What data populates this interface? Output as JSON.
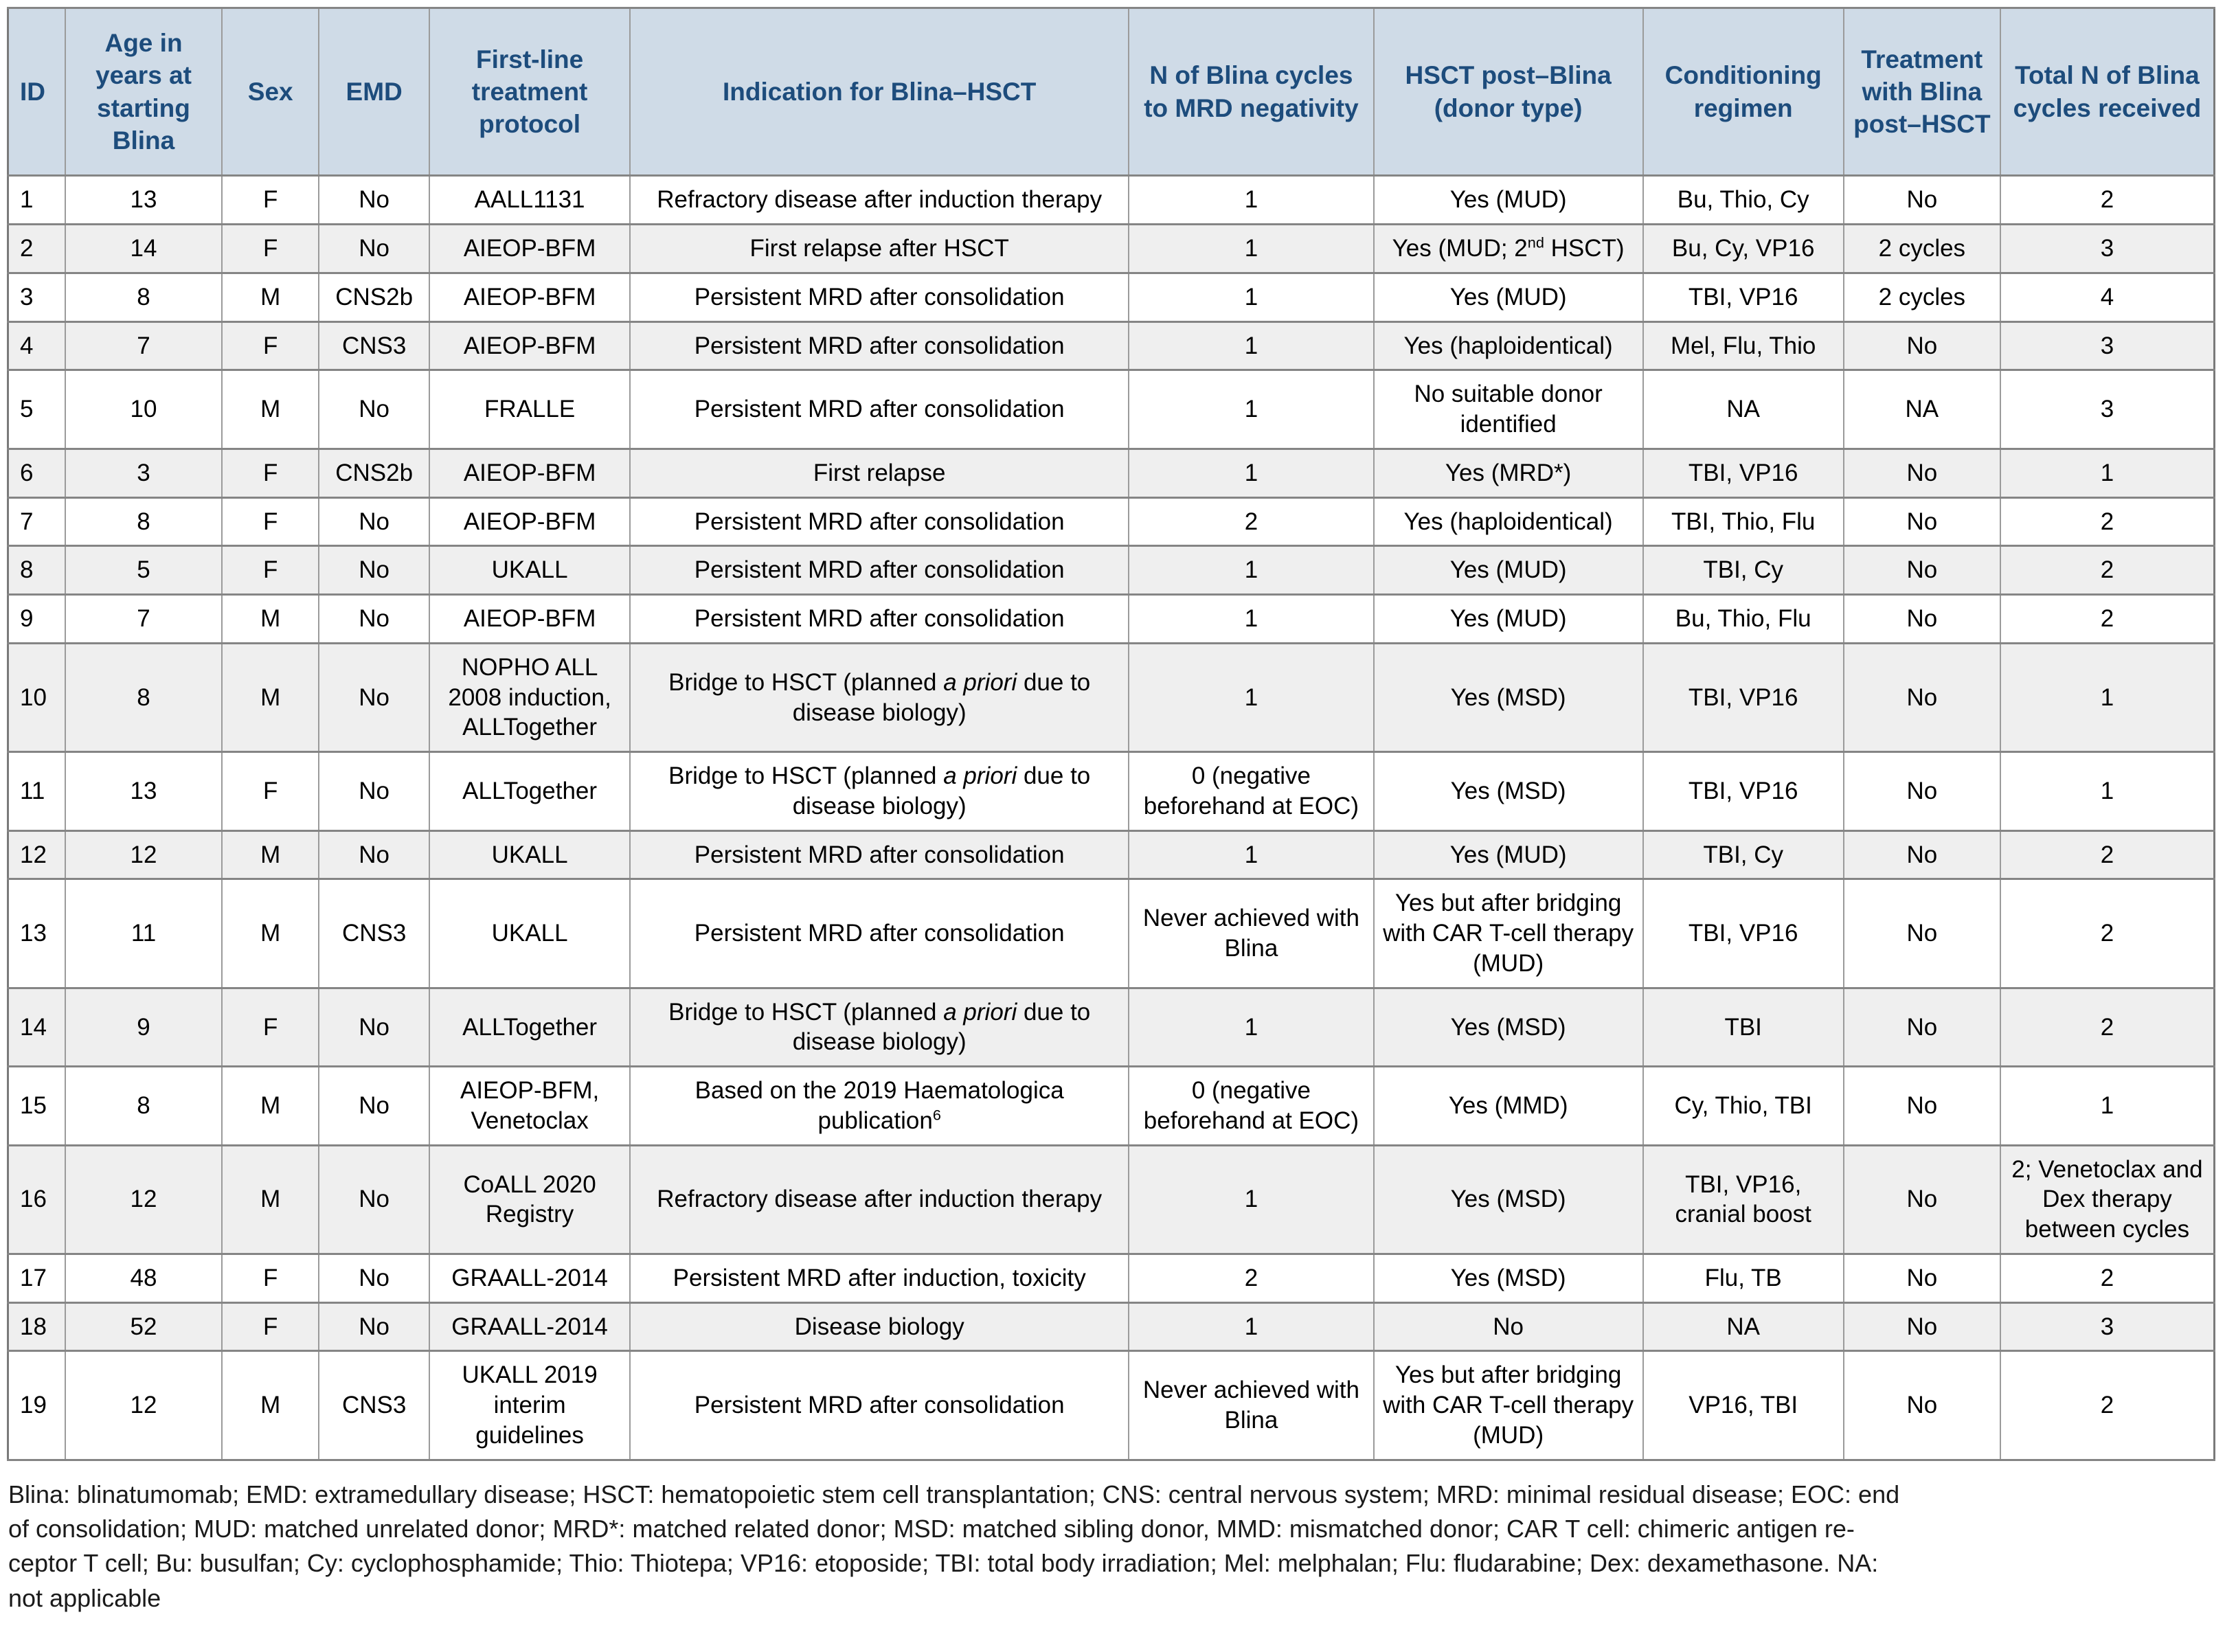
{
  "colors": {
    "header_bg": "#cfdbe7",
    "header_text": "#1d4c7c",
    "row_alt_bg": "#efefef",
    "border": "#8c8c8c"
  },
  "table": {
    "headers": [
      "ID",
      "Age in years at starting Blina",
      "Sex",
      "EMD",
      "First-line treatment protocol",
      "Indication for Blina–HSCT",
      "N of Blina cycles to MRD negativity",
      "HSCT post–Blina (donor type)",
      "Conditioning regimen",
      "Treatment with Blina post–HSCT",
      "Total N of Blina cycles received"
    ],
    "rows": [
      {
        "cells": [
          "1",
          "13",
          "F",
          "No",
          "AALL1131",
          "Refractory disease after induction therapy",
          "1",
          "Yes (MUD)",
          "Bu, Thio, Cy",
          "No",
          "2"
        ]
      },
      {
        "cells": [
          "2",
          "14",
          "F",
          "No",
          "AIEOP-BFM",
          "First relapse after HSCT",
          "1",
          "Yes (MUD; 2^nd^ HSCT)",
          "Bu, Cy, VP16",
          "2 cycles",
          "3"
        ]
      },
      {
        "cells": [
          "3",
          "8",
          "M",
          "CNS2b",
          "AIEOP-BFM",
          "Persistent MRD after consolidation",
          "1",
          "Yes (MUD)",
          "TBI, VP16",
          "2 cycles",
          "4"
        ]
      },
      {
        "cells": [
          "4",
          "7",
          "F",
          "CNS3",
          "AIEOP-BFM",
          "Persistent MRD after consolidation",
          "1",
          "Yes (haploidentical)",
          "Mel, Flu, Thio",
          "No",
          "3"
        ]
      },
      {
        "cells": [
          "5",
          "10",
          "M",
          "No",
          "FRALLE",
          "Persistent MRD after consolidation",
          "1",
          "No suitable donor identified",
          "NA",
          "NA",
          "3"
        ]
      },
      {
        "cells": [
          "6",
          "3",
          "F",
          "CNS2b",
          "AIEOP-BFM",
          "First relapse",
          "1",
          "Yes (MRD*)",
          "TBI, VP16",
          "No",
          "1"
        ]
      },
      {
        "cells": [
          "7",
          "8",
          "F",
          "No",
          "AIEOP-BFM",
          "Persistent MRD after consolidation",
          "2",
          "Yes (haploidentical)",
          "TBI, Thio, Flu",
          "No",
          "2"
        ]
      },
      {
        "cells": [
          "8",
          "5",
          "F",
          "No",
          "UKALL",
          "Persistent MRD after consolidation",
          "1",
          "Yes (MUD)",
          "TBI, Cy",
          "No",
          "2"
        ]
      },
      {
        "cells": [
          "9",
          "7",
          "M",
          "No",
          "AIEOP-BFM",
          "Persistent MRD after consolidation",
          "1",
          "Yes (MUD)",
          "Bu, Thio, Flu",
          "No",
          "2"
        ]
      },
      {
        "cells": [
          "10",
          "8",
          "M",
          "No",
          "NOPHO ALL 2008 induction, ALLTogether",
          "Bridge to HSCT (planned *a priori* due to disease biology)",
          "1",
          "Yes (MSD)",
          "TBI, VP16",
          "No",
          "1"
        ]
      },
      {
        "cells": [
          "11",
          "13",
          "F",
          "No",
          "ALLTogether",
          "Bridge to HSCT (planned *a priori* due to disease biology)",
          "0 (negative beforehand at EOC)",
          "Yes (MSD)",
          "TBI, VP16",
          "No",
          "1"
        ]
      },
      {
        "cells": [
          "12",
          "12",
          "M",
          "No",
          "UKALL",
          "Persistent MRD after consolidation",
          "1",
          "Yes (MUD)",
          "TBI, Cy",
          "No",
          "2"
        ]
      },
      {
        "cells": [
          "13",
          "11",
          "M",
          "CNS3",
          "UKALL",
          "Persistent MRD after consolidation",
          "Never achieved with Blina",
          "Yes but after bridging with CAR T-cell therapy (MUD)",
          "TBI, VP16",
          "No",
          "2"
        ]
      },
      {
        "cells": [
          "14",
          "9",
          "F",
          "No",
          "ALLTogether",
          "Bridge to HSCT (planned *a priori* due to disease biology)",
          "1",
          "Yes (MSD)",
          "TBI",
          "No",
          "2"
        ]
      },
      {
        "cells": [
          "15",
          "8",
          "M",
          "No",
          "AIEOP-BFM, Venetoclax",
          "Based on the 2019 Haematologica publication^6^",
          "0 (negative beforehand at EOC)",
          "Yes (MMD)",
          "Cy, Thio, TBI",
          "No",
          "1"
        ]
      },
      {
        "cells": [
          "16",
          "12",
          "M",
          "No",
          "CoALL 2020 Registry",
          "Refractory disease after induction therapy",
          "1",
          "Yes (MSD)",
          "TBI, VP16, cranial boost",
          "No",
          "2; Venetoclax and Dex therapy between cycles"
        ]
      },
      {
        "cells": [
          "17",
          "48",
          "F",
          "No",
          "GRAALL-2014",
          "Persistent MRD after induction, toxicity",
          "2",
          "Yes (MSD)",
          "Flu, TB",
          "No",
          "2"
        ]
      },
      {
        "cells": [
          "18",
          "52",
          "F",
          "No",
          "GRAALL-2014",
          "Disease biology",
          "1",
          "No",
          "NA",
          "No",
          "3"
        ]
      },
      {
        "cells": [
          "19",
          "12",
          "M",
          "CNS3",
          "UKALL 2019 interim guidelines",
          "Persistent MRD after consolidation",
          "Never achieved with Blina",
          "Yes but after bridging with CAR T-cell therapy (MUD)",
          "VP16, TBI",
          "No",
          "2"
        ]
      }
    ]
  },
  "footnote": {
    "lines": [
      "Blina: blinatumomab; EMD: extramedullary disease; HSCT: hematopoietic stem cell transplantation; CNS: central nervous system; MRD: minimal residual disease; EOC: end",
      "of consolidation; MUD: matched unrelated donor; MRD*: matched related donor; MSD: matched sibling donor, MMD: mismatched donor; CAR T cell: chimeric antigen re-",
      "ceptor T cell; Bu: busulfan; Cy: cyclophosphamide; Thio: Thiotepa; VP16: etoposide; TBI: total body irradiation; Mel: melphalan; Flu: fludarabine; Dex: dexamethasone. NA:",
      "not applicable"
    ]
  }
}
